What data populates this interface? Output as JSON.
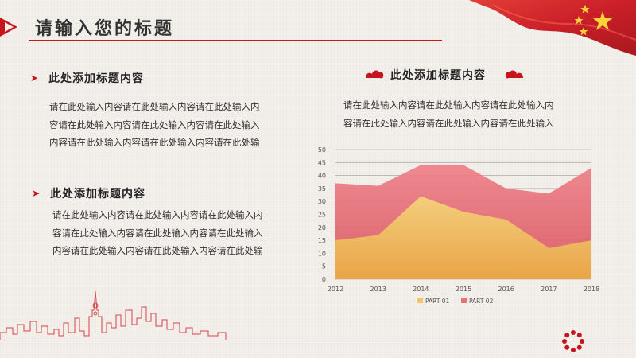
{
  "header": {
    "title": "请输入您的标题"
  },
  "left": {
    "section1": {
      "heading": "此处添加标题内容",
      "lines": [
        "请在此处输入内容请在此处输入内容请在此处输入内",
        "容请在此处输入内容请在此处输入内容请在此处输入",
        "内容请在此处输入内容请在此处输入内容请在此处输"
      ]
    },
    "section2": {
      "heading": "此处添加标题内容",
      "lines": [
        "请在此处输入内容请在此处输入内容请在此处输入内",
        "容请在此处输入内容请在此处输入内容请在此处输入",
        "内容请在此处输入内容请在此处输入内容请在此处输"
      ]
    }
  },
  "right": {
    "heading": "此处添加标题内容",
    "lines": [
      "请在此处输入内容请在此处输入内容请在此处输入内",
      "容请在此处输入内容请在此处输入内容请在此处输入"
    ]
  },
  "colors": {
    "brand_red": "#c8141e",
    "part1_fill": "#f2c46d",
    "part2_fill": "#e8707a"
  },
  "chart_data": {
    "type": "area",
    "categories": [
      "2012",
      "2013",
      "2014",
      "2015",
      "2016",
      "2017",
      "2018"
    ],
    "series": [
      {
        "name": "PART 01",
        "values": [
          15,
          17,
          32,
          26,
          23,
          12,
          15
        ]
      },
      {
        "name": "PART 02",
        "values": [
          37,
          36,
          44,
          44,
          35,
          33,
          43
        ]
      }
    ],
    "ylim": [
      0,
      50
    ],
    "yticks": [
      0,
      5,
      10,
      15,
      20,
      25,
      30,
      35,
      40,
      45,
      50
    ],
    "grid": true,
    "legend_position": "bottom"
  }
}
